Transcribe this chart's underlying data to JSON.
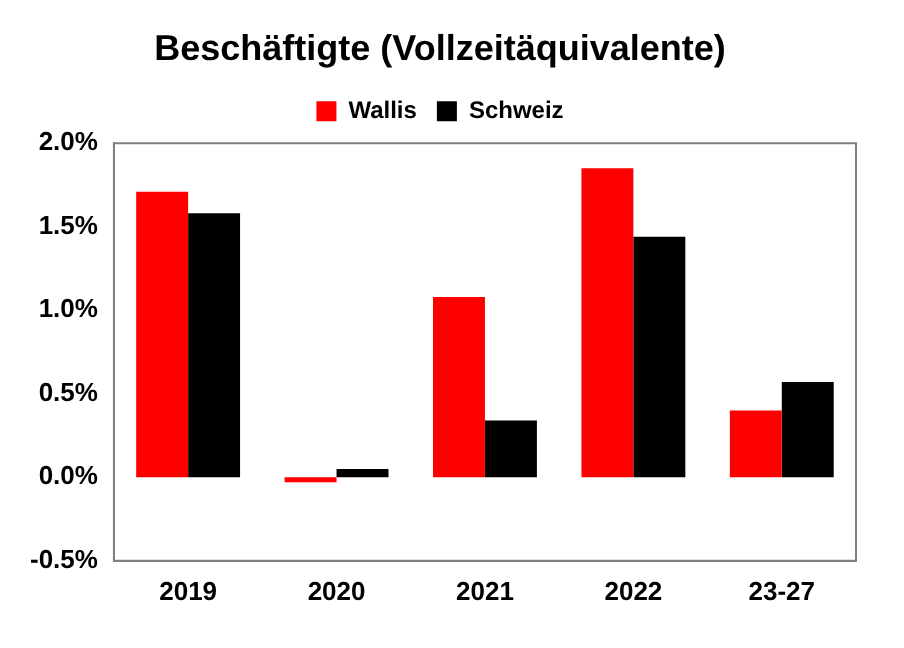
{
  "chart_data": {
    "type": "bar",
    "title": "Beschäftigte (Vollzeitäquivalente)",
    "categories": [
      "2019",
      "2020",
      "2021",
      "2022",
      "23-27"
    ],
    "series": [
      {
        "name": "Wallis",
        "color": "#ff0000",
        "values": [
          1.71,
          -0.03,
          1.08,
          1.85,
          0.4
        ]
      },
      {
        "name": "Schweiz",
        "color": "#000000",
        "values": [
          1.58,
          0.05,
          0.34,
          1.44,
          0.57
        ]
      }
    ],
    "ylim": [
      -0.5,
      2.0
    ],
    "yticks": [
      {
        "value": -0.5,
        "label": "-0.5%"
      },
      {
        "value": 0,
        "label": "0.0%"
      },
      {
        "value": 0.5,
        "label": "0.5%"
      },
      {
        "value": 1.0,
        "label": "1.0%"
      },
      {
        "value": 1.5,
        "label": "1.5%"
      },
      {
        "value": 2.0,
        "label": "2.0%"
      }
    ],
    "grid": false,
    "legend": "top"
  }
}
